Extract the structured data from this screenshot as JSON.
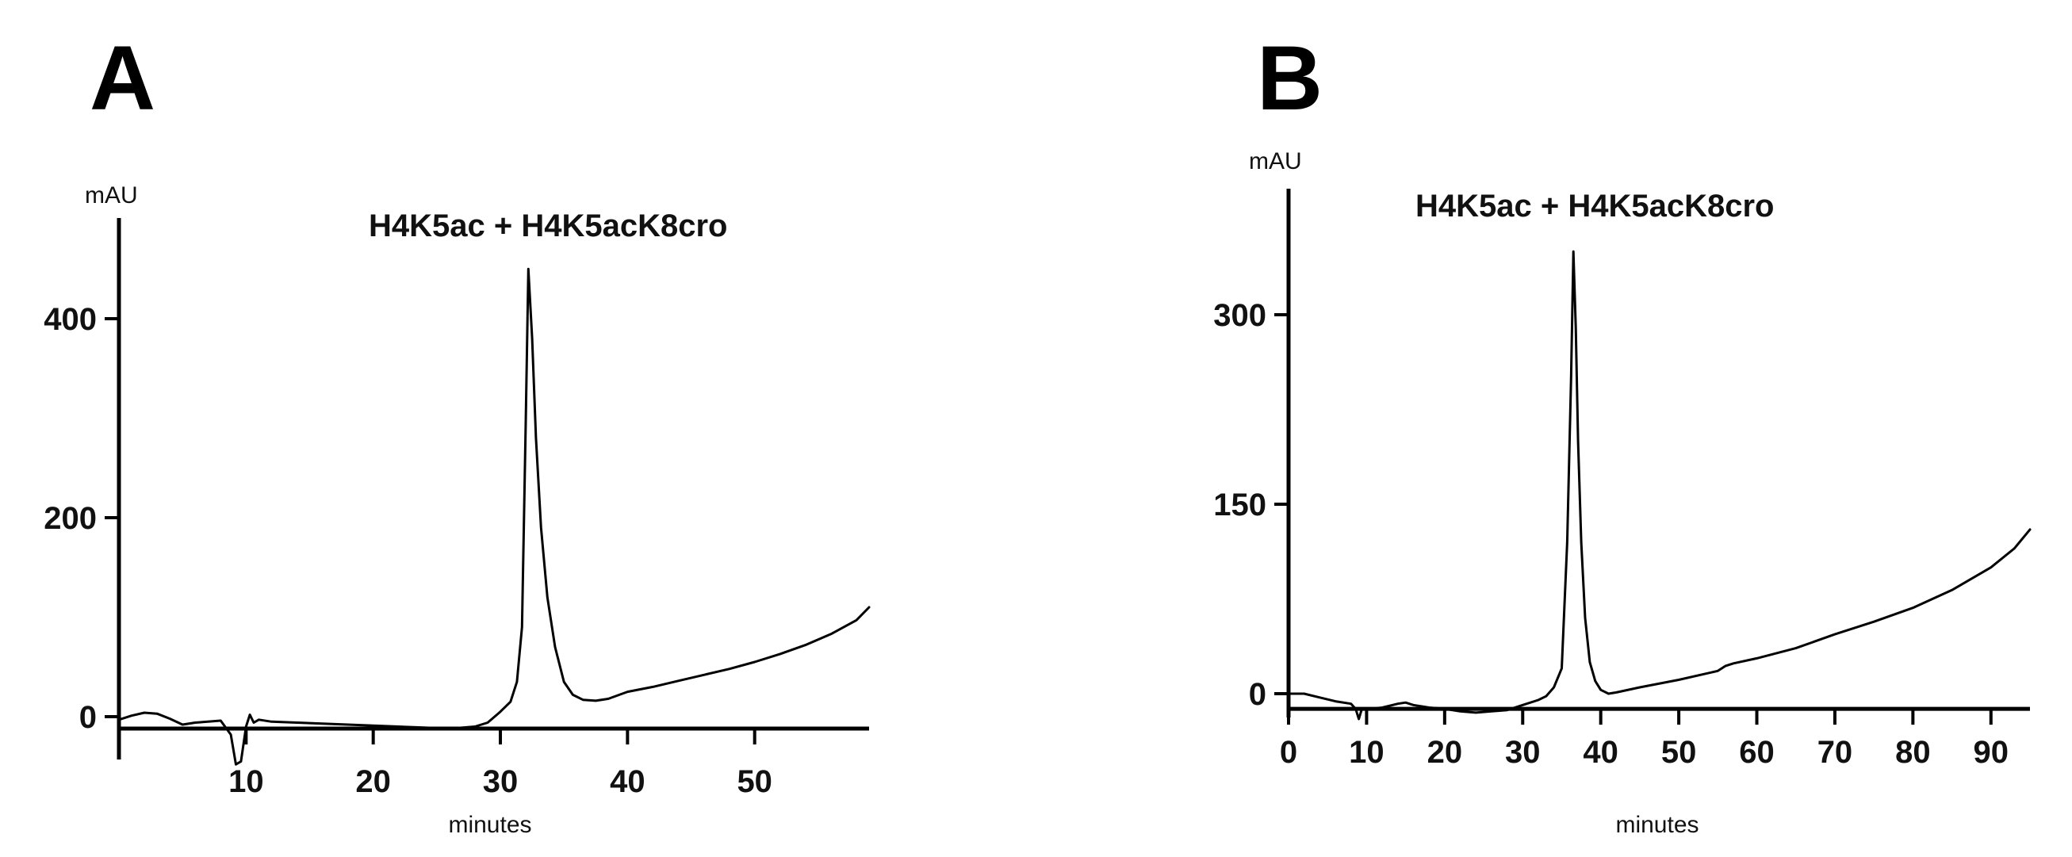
{
  "chart_data": [
    {
      "panel": "A",
      "type": "line",
      "title": "H4K5ac + H4K5acK8cro",
      "ylabel": "mAU",
      "xlabel": "minutes",
      "xlim": [
        0,
        59
      ],
      "ylim": [
        -50,
        500
      ],
      "baseline": -12,
      "xticks": [
        10,
        20,
        30,
        40,
        50
      ],
      "yticks": [
        0,
        200,
        400
      ],
      "series": [
        {
          "x": [
            0,
            1,
            2,
            3,
            4,
            5,
            6,
            7,
            8,
            8.8,
            9.2,
            9.6,
            10.0,
            10.3,
            10.6,
            11,
            12,
            14,
            16,
            18,
            20,
            22,
            24,
            26,
            28,
            29,
            30,
            30.8,
            31.3,
            31.7,
            32.0,
            32.2,
            32.5,
            32.8,
            33.2,
            33.7,
            34.3,
            35,
            35.7,
            36.5,
            37.5,
            38.5,
            40,
            42,
            44,
            46,
            48,
            50,
            52,
            54,
            56,
            58,
            59
          ],
          "y": [
            -3,
            1,
            4,
            3,
            -2,
            -8,
            -6,
            -5,
            -4,
            -18,
            -48,
            -45,
            -10,
            2,
            -6,
            -3,
            -5,
            -6,
            -7,
            -8,
            -9,
            -10,
            -11,
            -12,
            -10,
            -6,
            5,
            15,
            35,
            90,
            300,
            450,
            380,
            280,
            190,
            120,
            70,
            35,
            22,
            17,
            16,
            18,
            25,
            30,
            36,
            42,
            48,
            55,
            63,
            72,
            83,
            97,
            110
          ]
        }
      ]
    },
    {
      "panel": "B",
      "type": "line",
      "title": "H4K5ac + H4K5acK8cro",
      "ylabel": "mAU",
      "xlabel": "minutes",
      "xlim": [
        0,
        95
      ],
      "ylim": [
        -12,
        360
      ],
      "baseline": -12,
      "xticks": [
        0,
        10,
        20,
        30,
        40,
        50,
        60,
        70,
        80,
        90
      ],
      "yticks": [
        0,
        150,
        300
      ],
      "series": [
        {
          "x": [
            0,
            2,
            4,
            6,
            8,
            8.6,
            9.0,
            9.4,
            9.8,
            10.5,
            12,
            14,
            15,
            16,
            18,
            20,
            22,
            24,
            26,
            28,
            30,
            32,
            33,
            34,
            35,
            35.7,
            36.2,
            36.5,
            36.8,
            37.1,
            37.5,
            38,
            38.6,
            39.3,
            40,
            41,
            42,
            45,
            50,
            55,
            56,
            57,
            60,
            65,
            70,
            75,
            80,
            85,
            90,
            93,
            95
          ],
          "y": [
            0,
            0,
            -3,
            -6,
            -8,
            -12,
            -20,
            -12,
            -12,
            -12,
            -11,
            -8,
            -7,
            -9,
            -11,
            -12,
            -14,
            -15,
            -14,
            -13,
            -9,
            -5,
            -2,
            5,
            20,
            120,
            250,
            350,
            290,
            200,
            120,
            60,
            25,
            10,
            3,
            0,
            1,
            5,
            11,
            18,
            22,
            24,
            28,
            36,
            47,
            57,
            68,
            82,
            100,
            115,
            130
          ]
        }
      ]
    }
  ]
}
